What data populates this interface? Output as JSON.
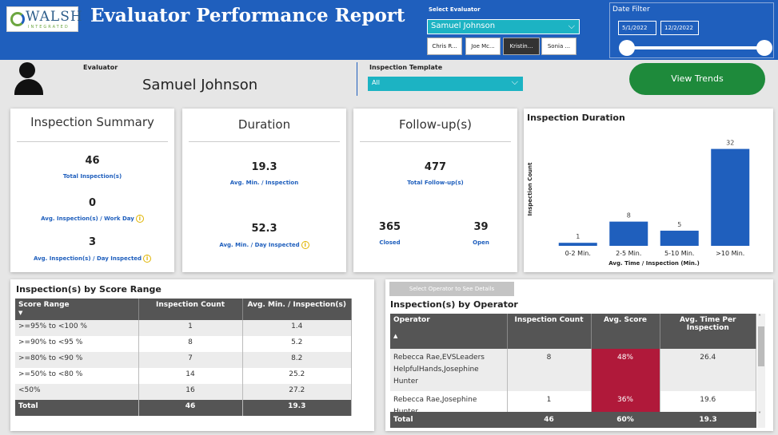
{
  "header": {
    "logo_text": "WALSH",
    "logo_sub": "INTEGRATED",
    "title": "Evaluator Performance Report",
    "select_evaluator_label": "Select Evaluator",
    "selected_evaluator": "Samuel Johnson",
    "evaluator_chips": [
      {
        "label": "Chris R...",
        "selected": false
      },
      {
        "label": "Joe Mc...",
        "selected": false
      },
      {
        "label": "Kristin...",
        "selected": true
      },
      {
        "label": "Sonia ...",
        "selected": false
      }
    ],
    "date_filter_label": "Date Filter",
    "date_start": "5/1/2022",
    "date_end": "12/2/2022"
  },
  "evaluator_bar": {
    "evaluator_label": "Evaluator",
    "evaluator_name": "Samuel Johnson",
    "template_label": "Inspection Template",
    "template_value": "All",
    "view_trends_label": "View Trends"
  },
  "summary": {
    "title": "Inspection Summary",
    "total_value": "46",
    "total_label": "Total Inspection(s)",
    "per_work_day_value": "0",
    "per_work_day_label": "Avg. Inspection(s) / Work Day",
    "per_day_inspected_value": "3",
    "per_day_inspected_label": "Avg. Inspection(s) / Day Inspected"
  },
  "duration": {
    "title": "Duration",
    "avg_per_inspection_value": "19.3",
    "avg_per_inspection_label": "Avg. Min. / Inspection",
    "avg_per_day_value": "52.3",
    "avg_per_day_label": "Avg. Min. / Day Inspected"
  },
  "followups": {
    "title": "Follow-up(s)",
    "total_value": "477",
    "total_label": "Total Follow-up(s)",
    "closed_value": "365",
    "closed_label": "Closed",
    "open_value": "39",
    "open_label": "Open"
  },
  "chart_data": {
    "type": "bar",
    "title": "Inspection Duration",
    "xlabel": "Avg. Time / Inspection (Min.)",
    "ylabel": "Inspection Count",
    "categories": [
      "0-2 Min.",
      "2-5 Min.",
      "5-10 Min.",
      ">10 Min."
    ],
    "values": [
      1,
      8,
      5,
      32
    ],
    "ylim": [
      0,
      34
    ],
    "grid": false,
    "color": "#1f5fbd"
  },
  "score_range": {
    "title": "Inspection(s) by Score Range",
    "columns": [
      "Score Range",
      "Inspection Count",
      "Avg. Min. / Inspection(s)"
    ],
    "rows": [
      [
        ">=95% to <100 %",
        "1",
        "1.4"
      ],
      [
        ">=90% to <95 %",
        "8",
        "5.2"
      ],
      [
        ">=80% to <90 %",
        "7",
        "8.2"
      ],
      [
        ">=50% to <80 %",
        "14",
        "25.2"
      ],
      [
        "<50%",
        "16",
        "27.2"
      ]
    ],
    "total": [
      "Total",
      "46",
      "19.3"
    ]
  },
  "operators": {
    "select_button_label": "Select Operator to See Details",
    "title": "Inspection(s) by Operator",
    "columns": [
      "Operator",
      "Inspection Count",
      "Avg. Score",
      "Avg. Time Per Inspection"
    ],
    "rows": [
      [
        "Rebecca Rae,EVSLeaders HelpfulHands,Josephine Hunter",
        "8",
        "48%",
        "26.4"
      ],
      [
        "Rebecca Rae,Josephine Hunter",
        "1",
        "36%",
        "19.6"
      ]
    ],
    "total": [
      "Total",
      "46",
      "60%",
      "19.3"
    ],
    "score_color": "#b0193a"
  }
}
